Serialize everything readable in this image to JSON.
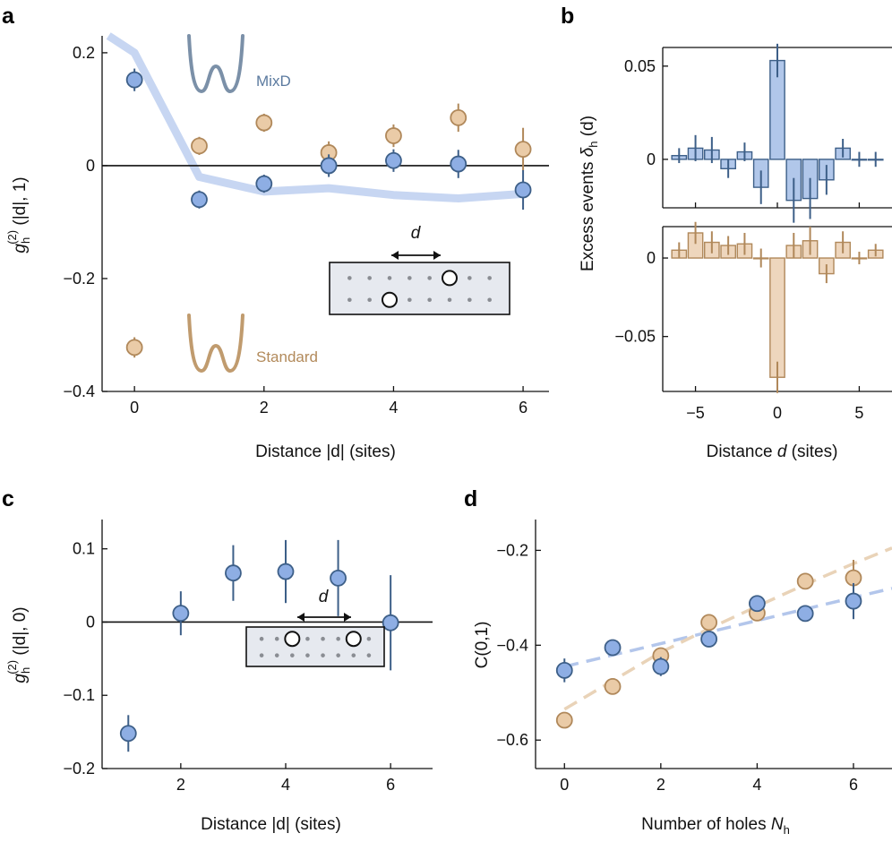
{
  "colors": {
    "blue_fill": "#8eaee4",
    "blue_edge": "#3d5f88",
    "blue_err": "#3d5f88",
    "tan_fill": "#eacba7",
    "tan_edge": "#b0885a",
    "tan_err": "#b0885a",
    "blue_line": "#c7d6f2",
    "tan_line": "#efdcc6",
    "bar_blue": "#b1c7ea",
    "bar_tan": "#eed6bd",
    "mixd_text": "#5b7a9f",
    "std_text": "#b28a5b",
    "potential_mixd": "#7b90a8",
    "potential_std": "#c09b6e"
  },
  "chart_data": [
    {
      "panel": "a",
      "type": "scatter",
      "xlabel": "Distance |d| (sites)",
      "ylabel_parts": {
        "g": "g",
        "sub": "h",
        "sup": "(2)",
        "rest": " (|d|, 1)"
      },
      "xlim": [
        -0.5,
        6.4
      ],
      "ylim": [
        -0.4,
        0.23
      ],
      "xticks": [
        0,
        2,
        4,
        6
      ],
      "xtick_labels": [
        "0",
        "2",
        "4",
        "6"
      ],
      "yticks": [
        0.2,
        0,
        -0.2,
        -0.4
      ],
      "ytick_labels": [
        "0.2",
        "0",
        "−0.2",
        "−0.4"
      ],
      "zero_line": true,
      "series": [
        {
          "name": "MixD",
          "x": [
            0,
            1,
            2,
            3,
            4,
            5,
            6
          ],
          "y": [
            0.152,
            -0.06,
            -0.032,
            0.0,
            0.009,
            0.003,
            -0.043
          ],
          "err": [
            0.02,
            0.016,
            0.016,
            0.02,
            0.02,
            0.025,
            0.035
          ]
        },
        {
          "name": "Standard",
          "x": [
            0,
            1,
            2,
            3,
            4,
            5,
            6
          ],
          "y": [
            -0.322,
            0.035,
            0.076,
            0.023,
            0.053,
            0.085,
            0.029
          ],
          "err": [
            0.018,
            0.016,
            0.016,
            0.02,
            0.02,
            0.025,
            0.038
          ]
        }
      ],
      "theory_line": {
        "x": [
          -0.4,
          0,
          0.5,
          1,
          2,
          3,
          4,
          5,
          6
        ],
        "y": [
          0.23,
          0.2,
          0.09,
          -0.02,
          -0.046,
          -0.04,
          -0.052,
          -0.058,
          -0.05
        ]
      },
      "annotations": {
        "mixd": "MixD",
        "standard": "Standard",
        "d": "d"
      }
    },
    {
      "panel": "b",
      "type": "bar",
      "xlabel_pre": "Distance ",
      "xlabel_it": "d",
      "xlabel_post": " (sites)",
      "ylabel_pre": "Excess events ",
      "ylabel_it": "δ",
      "ylabel_sub": "h",
      "ylabel_post": " (d)",
      "xlim": [
        -7,
        7
      ],
      "xticks": [
        -5,
        0,
        5
      ],
      "xtick_labels": [
        "−5",
        "0",
        "5"
      ],
      "top": {
        "ylim": [
          -0.026,
          0.06
        ],
        "yticks": [
          0.05,
          0
        ],
        "ytick_labels": [
          "0.05",
          "0"
        ],
        "x": [
          -6,
          -5,
          -4,
          -3,
          -2,
          -1,
          0,
          1,
          2,
          3,
          4,
          5,
          6
        ],
        "values": [
          0.002,
          0.006,
          0.005,
          -0.005,
          0.004,
          -0.015,
          0.053,
          -0.022,
          -0.021,
          -0.011,
          0.006,
          0.0,
          0.0
        ],
        "err": [
          0.004,
          0.007,
          0.007,
          0.005,
          0.005,
          0.009,
          0.009,
          0.012,
          0.011,
          0.008,
          0.005,
          0.004,
          0.004
        ]
      },
      "bottom": {
        "ylim": [
          -0.085,
          0.02
        ],
        "yticks": [
          0,
          -0.05
        ],
        "ytick_labels": [
          "0",
          "−0.05"
        ],
        "x": [
          -6,
          -5,
          -4,
          -3,
          -2,
          -1,
          0,
          1,
          2,
          3,
          4,
          5,
          6
        ],
        "values": [
          0.005,
          0.016,
          0.01,
          0.008,
          0.009,
          0.0,
          -0.076,
          0.008,
          0.011,
          -0.01,
          0.01,
          0.0,
          0.005
        ],
        "err": [
          0.005,
          0.007,
          0.007,
          0.006,
          0.007,
          0.006,
          0.01,
          0.008,
          0.009,
          0.006,
          0.007,
          0.004,
          0.004
        ]
      }
    },
    {
      "panel": "c",
      "type": "scatter",
      "xlabel": "Distance |d| (sites)",
      "ylabel_parts": {
        "g": "g",
        "sub": "h",
        "sup": "(2)",
        "rest": " (|d|, 0)"
      },
      "xlim": [
        0.5,
        6.8
      ],
      "ylim": [
        -0.2,
        0.14
      ],
      "xticks": [
        2,
        4,
        6
      ],
      "xtick_labels": [
        "2",
        "4",
        "6"
      ],
      "yticks": [
        0.1,
        0,
        -0.1,
        -0.2
      ],
      "ytick_labels": [
        "0.1",
        "0",
        "−0.1",
        "−0.2"
      ],
      "zero_line": true,
      "series": [
        {
          "name": "MixD",
          "x": [
            1,
            2,
            3,
            4,
            5,
            6
          ],
          "y": [
            -0.152,
            0.012,
            0.067,
            0.069,
            0.06,
            -0.001
          ],
          "err": [
            0.025,
            0.03,
            0.038,
            0.043,
            0.052,
            0.065
          ]
        }
      ],
      "annotations": {
        "d": "d"
      }
    },
    {
      "panel": "d",
      "type": "scatter",
      "xlabel_pre": "Number of holes ",
      "xlabel_it": "N",
      "xlabel_sub": "h",
      "ylabel": "C(0,1)",
      "xlim": [
        -0.6,
        6.8
      ],
      "ylim": [
        -0.66,
        -0.135
      ],
      "xticks": [
        0,
        2,
        4,
        6
      ],
      "xtick_labels": [
        "0",
        "2",
        "4",
        "6"
      ],
      "yticks": [
        -0.2,
        -0.4,
        -0.6
      ],
      "ytick_labels": [
        "−0.2",
        "−0.4",
        "−0.6"
      ],
      "series": [
        {
          "name": "MixD",
          "x": [
            0,
            1,
            2,
            3,
            4,
            5,
            6
          ],
          "y": [
            -0.453,
            -0.405,
            -0.445,
            -0.387,
            -0.312,
            -0.333,
            -0.307
          ],
          "err": [
            0.025,
            0.015,
            0.02,
            0.015,
            0.015,
            0.017,
            0.038
          ]
        },
        {
          "name": "Standard",
          "x": [
            0,
            1,
            2,
            3,
            4,
            5,
            6
          ],
          "y": [
            -0.558,
            -0.487,
            -0.422,
            -0.352,
            -0.332,
            -0.265,
            -0.258
          ],
          "err": [
            0.015,
            0.013,
            0.015,
            0.015,
            0.015,
            0.017,
            0.038
          ]
        }
      ],
      "fits": [
        {
          "name": "MixD",
          "x": [
            0,
            6.8
          ],
          "y": [
            -0.445,
            -0.28
          ]
        },
        {
          "name": "Standard",
          "x": [
            0,
            1,
            2,
            3,
            4,
            5,
            6,
            6.8
          ],
          "y": [
            -0.535,
            -0.475,
            -0.415,
            -0.365,
            -0.318,
            -0.272,
            -0.228,
            -0.195
          ]
        }
      ]
    }
  ],
  "panel_labels": {
    "a": "a",
    "b": "b",
    "c": "c",
    "d": "d"
  }
}
